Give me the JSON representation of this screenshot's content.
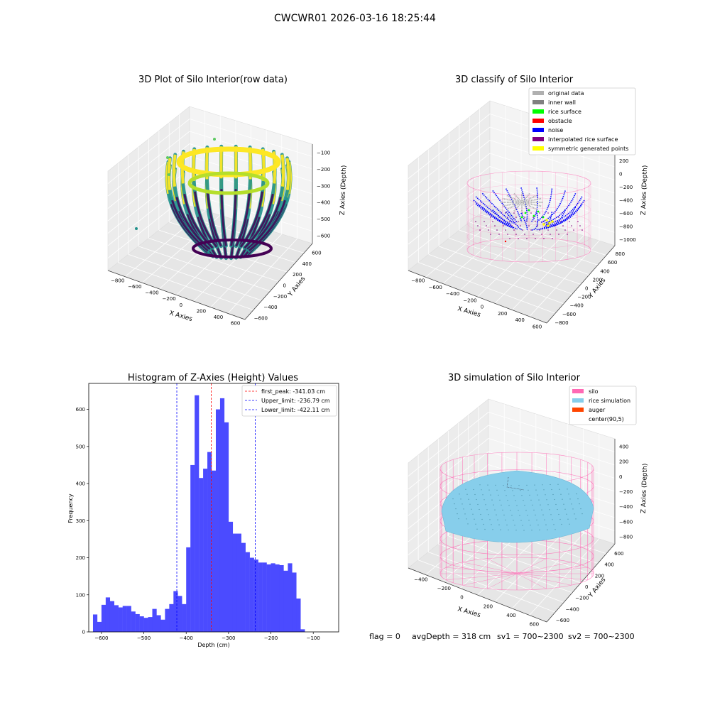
{
  "figure_title": "CWCWR01 2026-03-16 18:25:44",
  "status_line": {
    "flag": "flag = 0",
    "avg_depth": "avgDepth = 318 cm",
    "sv1": "sv1 = 700~2300",
    "sv2": "sv2 = 700~2300"
  },
  "colors": {
    "histogram_bar": "#4b4bff",
    "peak_line": "#ff0000",
    "limit_line": "#0000ff",
    "silo": "#ff69b4",
    "rice_simulation": "#87ceeb",
    "auger": "#ff4500",
    "original_data": "#b0b0b0",
    "inner_wall": "#808080",
    "rice_surface": "#00ff00",
    "obstacle": "#ff0000",
    "noise": "#0000ff",
    "interpolated_rice_surface": "#800080",
    "symmetric_generated_points": "#ffff00"
  },
  "chart_data": [
    {
      "type": "scatter",
      "projection": "3d",
      "title": "3D Plot of Silo Interior(row data)",
      "xlabel": "X Axies",
      "ylabel": "Y Axies",
      "zlabel": "Z Axies (Depth)",
      "xticks": [
        "−800",
        "−600",
        "−400",
        "−200",
        "0",
        "200",
        "400",
        "600"
      ],
      "yticks": [
        "−600",
        "−400",
        "−200",
        "0",
        "200",
        "400",
        "600"
      ],
      "zticks": [
        "−100",
        "−200",
        "−300",
        "−400",
        "−500",
        "−600"
      ],
      "xlim": [
        -900,
        650
      ],
      "ylim": [
        -650,
        650
      ],
      "zlim": [
        -680,
        -50
      ],
      "colormap": "viridis",
      "grid": true
    },
    {
      "type": "scatter",
      "projection": "3d",
      "title": "3D classify of Silo Interior",
      "xlabel": "X Axies",
      "ylabel": "Y Axies",
      "zlabel": "Z Axies (Depth)",
      "xticks": [
        "−800",
        "−600",
        "−400",
        "−200",
        "0",
        "200",
        "400",
        "600"
      ],
      "yticks": [
        "−800",
        "−600",
        "−400",
        "−200",
        "0",
        "200",
        "400",
        "600",
        "800"
      ],
      "zticks": [
        "400",
        "200",
        "0",
        "−200",
        "−400",
        "−600",
        "−800",
        "−1000"
      ],
      "xlim": [
        -900,
        700
      ],
      "ylim": [
        -850,
        850
      ],
      "zlim": [
        -1050,
        450
      ],
      "legend": {
        "placement": "upper right",
        "entries": [
          {
            "label": "original data",
            "color": "#b0b0b0"
          },
          {
            "label": "inner wall",
            "color": "#808080"
          },
          {
            "label": "rice surface",
            "color": "#00ff00"
          },
          {
            "label": "obstacle",
            "color": "#ff0000"
          },
          {
            "label": "noise",
            "color": "#0000ff"
          },
          {
            "label": "interpolated rice surface",
            "color": "#800080"
          },
          {
            "label": "symmetric generated points",
            "color": "#ffff00"
          }
        ]
      },
      "grid": true
    },
    {
      "type": "bar",
      "title": "Histogram of Z-Axies (Height) Values",
      "xlabel": "Depth (cm)",
      "ylabel": "Frequency",
      "xlim": [
        -630,
        -40
      ],
      "ylim": [
        0,
        670
      ],
      "xticks": [
        -600,
        -500,
        -400,
        -300,
        -200,
        -100
      ],
      "yticks": [
        0,
        100,
        200,
        300,
        400,
        500,
        600
      ],
      "bin_width": 10,
      "bin_start": -620,
      "values": [
        47,
        27,
        73,
        93,
        83,
        72,
        66,
        70,
        70,
        55,
        48,
        42,
        38,
        40,
        62,
        45,
        33,
        62,
        75,
        110,
        97,
        75,
        228,
        450,
        638,
        415,
        440,
        485,
        435,
        600,
        630,
        565,
        297,
        265,
        265,
        240,
        215,
        200,
        195,
        187,
        187,
        182,
        185,
        182,
        180,
        165,
        185,
        160,
        90,
        7
      ],
      "vlines": [
        {
          "label": "first_peak: -341.03 cm",
          "x": -341.03,
          "style": "red"
        },
        {
          "label": "Upper_limit: -236.79 cm",
          "x": -236.79,
          "style": "blue"
        },
        {
          "label": "Lower_limit: -422.11 cm",
          "x": -422.11,
          "style": "blue"
        }
      ],
      "legend": {
        "placement": "upper right"
      },
      "grid": false
    },
    {
      "type": "surface",
      "projection": "3d",
      "title": "3D simulation of Silo Interior",
      "xlabel": "X Axies",
      "ylabel": "Y Axies",
      "zlabel": "Z Axies (Depth)",
      "xticks": [
        "−400",
        "−200",
        "0",
        "200",
        "400",
        "600"
      ],
      "yticks": [
        "−600",
        "−400",
        "−200",
        "0",
        "200",
        "400",
        "600"
      ],
      "zticks": [
        "400",
        "200",
        "0",
        "−200",
        "−400",
        "−600",
        "−800"
      ],
      "xlim": [
        -550,
        700
      ],
      "ylim": [
        -650,
        650
      ],
      "zlim": [
        -900,
        480
      ],
      "silo_wall_top": 300,
      "silo_wall_bottom": -900,
      "rice_depth": -318,
      "legend": {
        "placement": "upper right",
        "entries": [
          {
            "label": "silo",
            "color": "#ff69b4"
          },
          {
            "label": "rice simulation",
            "color": "#87ceeb"
          },
          {
            "label": "auger",
            "color": "#ff4500"
          },
          {
            "label": "center(90,5)",
            "color": ""
          }
        ]
      },
      "grid": true
    }
  ]
}
